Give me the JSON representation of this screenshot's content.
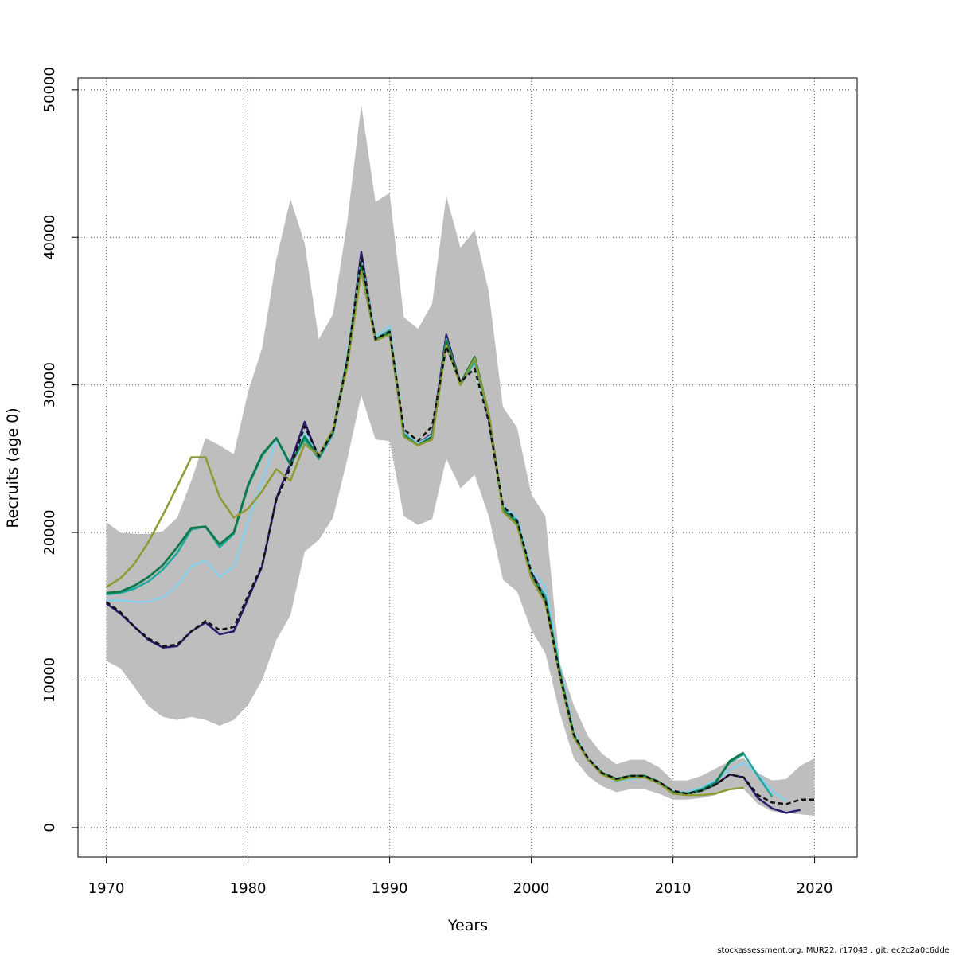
{
  "chart_data": {
    "type": "line",
    "title": "",
    "xlabel": "Years",
    "ylabel": "Recruits (age 0)",
    "xlim": [
      1968,
      2023
    ],
    "ylim": [
      -2000,
      50800
    ],
    "grid": true,
    "x_ticks": [
      1970,
      1980,
      1990,
      2000,
      2010,
      2020
    ],
    "y_ticks": [
      0,
      10000,
      20000,
      30000,
      40000,
      50000
    ],
    "x_tick_labels": [
      "1970",
      "1980",
      "1990",
      "2000",
      "2010",
      "2020"
    ],
    "y_tick_labels": [
      "0",
      "10000",
      "20000",
      "30000",
      "40000",
      "50000"
    ],
    "footer": "stockassessment.org, MUR22, r17043 , git: ec2c2a0c6dde",
    "band": {
      "color": "#bebebe",
      "x": [
        1970,
        1971,
        1972,
        1973,
        1974,
        1975,
        1976,
        1977,
        1978,
        1979,
        1980,
        1981,
        1982,
        1983,
        1984,
        1985,
        1986,
        1987,
        1988,
        1989,
        1990,
        1991,
        1992,
        1993,
        1994,
        1995,
        1996,
        1997,
        1998,
        1999,
        2000,
        2001,
        2002,
        2003,
        2004,
        2005,
        2006,
        2007,
        2008,
        2009,
        2010,
        2011,
        2012,
        2013,
        2014,
        2015,
        2016,
        2017,
        2018,
        2019,
        2020
      ],
      "upper": [
        20700,
        20000,
        19900,
        19900,
        20100,
        21000,
        23500,
        26400,
        25900,
        25300,
        29500,
        32500,
        38500,
        42600,
        39600,
        33100,
        34800,
        41000,
        49000,
        42400,
        43000,
        34600,
        33800,
        35500,
        42800,
        39300,
        40500,
        36300,
        28500,
        27100,
        22600,
        21100,
        11200,
        8300,
        6200,
        5000,
        4300,
        4600,
        4600,
        4100,
        3200,
        3200,
        3500,
        4000,
        4500,
        4700,
        3700,
        3200,
        3300,
        4200,
        4700
      ],
      "lower": [
        11300,
        10800,
        9500,
        8200,
        7500,
        7300,
        7500,
        7300,
        6900,
        7300,
        8300,
        10000,
        12700,
        14400,
        18700,
        19500,
        21000,
        24900,
        29300,
        26300,
        26200,
        21100,
        20500,
        20900,
        25000,
        23000,
        23900,
        21100,
        16800,
        16000,
        13400,
        11800,
        7800,
        4700,
        3500,
        2800,
        2400,
        2600,
        2600,
        2300,
        1900,
        1900,
        2000,
        2200,
        2700,
        2600,
        1600,
        1100,
        1000,
        900,
        800
      ]
    },
    "series": [
      {
        "color": "#111111",
        "dashed": true,
        "width": 2.5,
        "x": [
          1970,
          1971,
          1972,
          1973,
          1974,
          1975,
          1976,
          1977,
          1978,
          1979,
          1980,
          1981,
          1982,
          1983,
          1984,
          1985,
          1986,
          1987,
          1988,
          1989,
          1990,
          1991,
          1992,
          1993,
          1994,
          1995,
          1996,
          1997,
          1998,
          1999,
          2000,
          2001,
          2002,
          2003,
          2004,
          2005,
          2006,
          2007,
          2008,
          2009,
          2010,
          2011,
          2012,
          2013,
          2014,
          2015,
          2016,
          2017,
          2018,
          2019,
          2020
        ],
        "values": [
          15300,
          14600,
          13600,
          12800,
          12300,
          12400,
          13300,
          14000,
          13400,
          13600,
          15700,
          17800,
          22200,
          24400,
          27200,
          25200,
          26800,
          31600,
          38600,
          33100,
          33600,
          27000,
          26200,
          27200,
          32600,
          30200,
          31100,
          27500,
          21800,
          20800,
          17300,
          15400,
          10400,
          6300,
          4700,
          3700,
          3300,
          3500,
          3500,
          3100,
          2500,
          2300,
          2500,
          2900,
          3600,
          3400,
          2200,
          1700,
          1600,
          1900,
          1900
        ]
      },
      {
        "color": "#2b1a6e",
        "dashed": false,
        "width": 2.5,
        "x": [
          1970,
          1971,
          1972,
          1973,
          1974,
          1975,
          1976,
          1977,
          1978,
          1979,
          1980,
          1981,
          1982,
          1983,
          1984,
          1985,
          1986,
          1987,
          1988,
          1989,
          1990,
          1991,
          1992,
          1993,
          1994,
          1995,
          1996,
          1997,
          1998,
          1999,
          2000,
          2001,
          2002,
          2003,
          2004,
          2005,
          2006,
          2007,
          2008,
          2009,
          2010,
          2011,
          2012,
          2013,
          2014,
          2015,
          2016,
          2017,
          2018,
          2019
        ],
        "values": [
          15200,
          14500,
          13600,
          12700,
          12200,
          12300,
          13300,
          13900,
          13100,
          13300,
          15500,
          17700,
          22300,
          24700,
          27500,
          25000,
          26700,
          31500,
          39000,
          33000,
          33700,
          26800,
          26000,
          26700,
          33400,
          30100,
          31800,
          27600,
          21600,
          20600,
          17300,
          15600,
          10600,
          6300,
          4700,
          3700,
          3200,
          3500,
          3500,
          3000,
          2400,
          2300,
          2500,
          2900,
          3600,
          3400,
          2000,
          1300,
          1000,
          1200
        ]
      },
      {
        "color": "#87ceeb",
        "dashed": false,
        "width": 2.5,
        "x": [
          1970,
          1971,
          1972,
          1973,
          1974,
          1975,
          1976,
          1977,
          1978,
          1979,
          1980,
          1981,
          1982,
          1983,
          1984,
          1985,
          1986,
          1987,
          1988,
          1989,
          1990,
          1991,
          1992,
          1993,
          1994,
          1995,
          1996,
          1997,
          1998,
          1999,
          2000,
          2001,
          2002,
          2003,
          2004,
          2005,
          2006,
          2007,
          2008,
          2009,
          2010,
          2011,
          2012,
          2013,
          2014,
          2015,
          2016,
          2017,
          2018
        ],
        "values": [
          15400,
          15400,
          15300,
          15300,
          15600,
          16400,
          17700,
          18100,
          17000,
          17700,
          20700,
          23500,
          26300,
          24500,
          26800,
          25100,
          26800,
          31800,
          38500,
          33300,
          34000,
          26800,
          26000,
          26600,
          33100,
          30100,
          31500,
          27800,
          21800,
          21000,
          17400,
          16300,
          10900,
          6400,
          4700,
          3700,
          3100,
          3300,
          3400,
          3000,
          2400,
          2400,
          2700,
          3200,
          3900,
          4400,
          3600,
          2500,
          1800
        ]
      },
      {
        "color": "#20a8a0",
        "dashed": false,
        "width": 2.5,
        "x": [
          1970,
          1971,
          1972,
          1973,
          1974,
          1975,
          1976,
          1977,
          1978,
          1979,
          1980,
          1981,
          1982,
          1983,
          1984,
          1985,
          1986,
          1987,
          1988,
          1989,
          1990,
          1991,
          1992,
          1993,
          1994,
          1995,
          1996,
          1997,
          1998,
          1999,
          2000,
          2001,
          2002,
          2003,
          2004,
          2005,
          2006,
          2007,
          2008,
          2009,
          2010,
          2011,
          2012,
          2013,
          2014,
          2015,
          2016,
          2017
        ],
        "values": [
          15800,
          15900,
          16200,
          16700,
          17500,
          18600,
          20200,
          20400,
          19000,
          19900,
          23100,
          25200,
          26400,
          24600,
          26300,
          25000,
          26700,
          31700,
          38200,
          33100,
          33700,
          26700,
          25900,
          26400,
          32800,
          30000,
          31600,
          27800,
          21600,
          20800,
          17100,
          15700,
          10700,
          6300,
          4600,
          3700,
          3200,
          3400,
          3500,
          3000,
          2400,
          2300,
          2600,
          3100,
          4400,
          5000,
          3500,
          2100
        ]
      },
      {
        "color": "#0e7a4a",
        "dashed": false,
        "width": 2.8,
        "x": [
          1970,
          1971,
          1972,
          1973,
          1974,
          1975,
          1976,
          1977,
          1978,
          1979,
          1980,
          1981,
          1982,
          1983,
          1984,
          1985,
          1986,
          1987,
          1988,
          1989,
          1990,
          1991,
          1992,
          1993,
          1994,
          1995,
          1996,
          1997,
          1998,
          1999,
          2000,
          2001,
          2002,
          2003,
          2004,
          2005,
          2006,
          2007,
          2008,
          2009,
          2010,
          2011,
          2012,
          2013,
          2014,
          2015
        ],
        "values": [
          15900,
          16000,
          16400,
          17000,
          17800,
          19000,
          20300,
          20400,
          19200,
          20000,
          23200,
          25300,
          26400,
          24600,
          26500,
          25100,
          26900,
          31600,
          38000,
          33100,
          33500,
          26600,
          25900,
          26500,
          33000,
          30100,
          31900,
          28000,
          21500,
          20600,
          17000,
          15400,
          10500,
          6200,
          4600,
          3700,
          3300,
          3500,
          3500,
          3100,
          2400,
          2300,
          2500,
          3000,
          4500,
          5100
        ]
      },
      {
        "color": "#8f9a30",
        "dashed": false,
        "width": 2.5,
        "x": [
          1970,
          1971,
          1972,
          1973,
          1974,
          1975,
          1976,
          1977,
          1978,
          1979,
          1980,
          1981,
          1982,
          1983,
          1984,
          1985,
          1986,
          1987,
          1988,
          1989,
          1990,
          1991,
          1992,
          1993,
          1994,
          1995,
          1996,
          1997,
          1998,
          1999,
          2000,
          2001,
          2002,
          2003,
          2004,
          2005,
          2006,
          2007,
          2008,
          2009,
          2010,
          2011,
          2012,
          2013,
          2014,
          2015
        ],
        "values": [
          16300,
          16900,
          17900,
          19400,
          21200,
          23100,
          25100,
          25100,
          22400,
          21000,
          21600,
          22800,
          24300,
          23500,
          26000,
          25200,
          27000,
          31200,
          37700,
          33000,
          33400,
          26500,
          25900,
          26300,
          32700,
          30000,
          31800,
          28000,
          21400,
          20500,
          16900,
          15200,
          10300,
          6100,
          4600,
          3600,
          3200,
          3400,
          3400,
          3000,
          2300,
          2200,
          2200,
          2300,
          2600,
          2700
        ]
      }
    ]
  }
}
